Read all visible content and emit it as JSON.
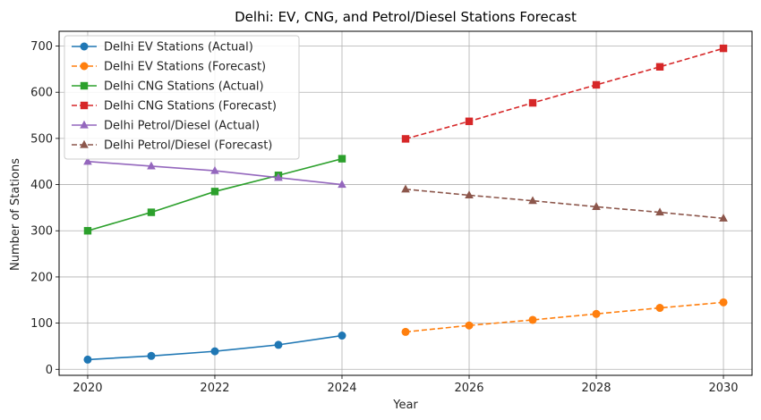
{
  "chart_data": {
    "type": "line",
    "title": "Delhi: EV, CNG, and Petrol/Diesel Stations Forecast",
    "xlabel": "Year",
    "ylabel": "Number of Stations",
    "xlim": [
      2019.55,
      2030.45
    ],
    "ylim": [
      -13,
      732
    ],
    "xticks": [
      2020,
      2022,
      2024,
      2026,
      2028,
      2030
    ],
    "yticks": [
      0,
      100,
      200,
      300,
      400,
      500,
      600,
      700
    ],
    "grid": true,
    "legend_position": "upper-left",
    "series": [
      {
        "name": "Delhi EV Stations (Actual)",
        "color": "#1f77b4",
        "marker": "circle",
        "dashed": false,
        "x": [
          2020,
          2021,
          2022,
          2023,
          2024
        ],
        "y": [
          21,
          29,
          39,
          53,
          73
        ]
      },
      {
        "name": "Delhi EV Stations (Forecast)",
        "color": "#ff7f0e",
        "marker": "circle",
        "dashed": true,
        "x": [
          2025,
          2026,
          2027,
          2028,
          2029,
          2030
        ],
        "y": [
          81,
          95,
          107,
          120,
          133,
          145
        ]
      },
      {
        "name": "Delhi CNG Stations (Actual)",
        "color": "#2ca02c",
        "marker": "square",
        "dashed": false,
        "x": [
          2020,
          2021,
          2022,
          2023,
          2024
        ],
        "y": [
          300,
          340,
          385,
          420,
          456
        ]
      },
      {
        "name": "Delhi CNG Stations (Forecast)",
        "color": "#d62728",
        "marker": "square",
        "dashed": true,
        "x": [
          2025,
          2026,
          2027,
          2028,
          2029,
          2030
        ],
        "y": [
          499,
          537,
          577,
          616,
          655,
          695
        ]
      },
      {
        "name": "Delhi Petrol/Diesel (Actual)",
        "color": "#9467bd",
        "marker": "triangle",
        "dashed": false,
        "x": [
          2020,
          2021,
          2022,
          2023,
          2024
        ],
        "y": [
          450,
          440,
          430,
          415,
          400
        ]
      },
      {
        "name": "Delhi Petrol/Diesel (Forecast)",
        "color": "#8c564b",
        "marker": "triangle",
        "dashed": true,
        "x": [
          2025,
          2026,
          2027,
          2028,
          2029,
          2030
        ],
        "y": [
          390,
          377,
          365,
          352,
          340,
          327
        ]
      }
    ]
  }
}
